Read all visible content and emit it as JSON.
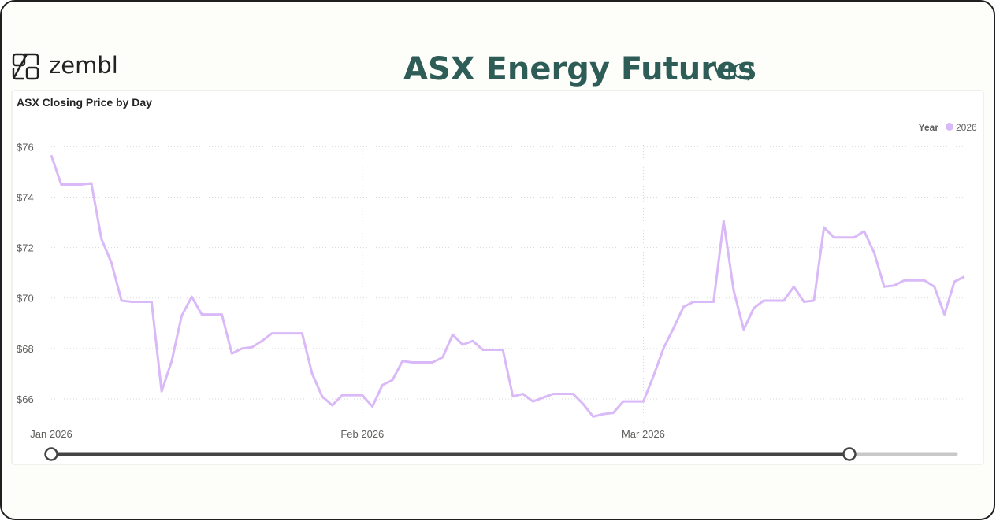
{
  "header": {
    "logo": "zembl",
    "title": "ASX Energy Futures",
    "region": "(VIC)"
  },
  "chart_data": {
    "type": "line",
    "title": "ASX Closing Price by Day",
    "legend_title": "Year",
    "categories": [
      "Jan 2026",
      null,
      null,
      null,
      null,
      null,
      null,
      null,
      null,
      null,
      null,
      null,
      null,
      null,
      null,
      null,
      null,
      null,
      null,
      null,
      null,
      null,
      null,
      null,
      null,
      null,
      null,
      null,
      null,
      null,
      null,
      "Feb 2026",
      null,
      null,
      null,
      null,
      null,
      null,
      null,
      null,
      null,
      null,
      null,
      null,
      null,
      null,
      null,
      null,
      null,
      null,
      null,
      null,
      null,
      null,
      null,
      null,
      null,
      null,
      null,
      "Mar 2026",
      null,
      null,
      null,
      null,
      null,
      null,
      null,
      null,
      null,
      null,
      null,
      null,
      null,
      null,
      null,
      null,
      null,
      null,
      null,
      null,
      null,
      null,
      null,
      null,
      null,
      null,
      null,
      null,
      null,
      null,
      null,
      null
    ],
    "series": [
      {
        "name": "2026",
        "color": "#d9b9f7",
        "values": [
          75.66,
          74.5,
          74.5,
          74.5,
          74.55,
          72.35,
          71.4,
          69.9,
          69.85,
          69.85,
          69.85,
          66.3,
          67.5,
          69.3,
          70.05,
          69.35,
          69.35,
          69.35,
          67.8,
          68,
          68.05,
          68.3,
          68.6,
          68.6,
          68.6,
          68.6,
          67,
          66.1,
          65.75,
          66.15,
          66.15,
          66.15,
          65.7,
          66.55,
          66.75,
          67.5,
          67.45,
          67.45,
          67.45,
          67.65,
          68.55,
          68.15,
          68.3,
          67.95,
          67.95,
          67.95,
          66.1,
          66.2,
          65.9,
          66.05,
          66.2,
          66.2,
          66.2,
          65.8,
          65.3,
          65.4,
          65.45,
          65.9,
          65.9,
          65.9,
          66.9,
          68,
          68.8,
          69.65,
          69.85,
          69.85,
          69.85,
          73.05,
          70.3,
          68.75,
          69.6,
          69.9,
          69.9,
          69.9,
          70.45,
          69.85,
          69.9,
          72.8,
          72.4,
          72.4,
          72.4,
          72.65,
          71.8,
          70.45,
          70.5,
          70.7,
          70.7,
          70.7,
          70.45,
          69.35,
          70.65,
          70.85
        ]
      }
    ],
    "ylim": [
      65,
      76.2
    ],
    "yticks": [
      {
        "value": 66,
        "label": "$66"
      },
      {
        "value": 68,
        "label": "$68"
      },
      {
        "value": 70,
        "label": "$70"
      },
      {
        "value": 72,
        "label": "$72"
      },
      {
        "value": 74,
        "label": "$74"
      },
      {
        "value": 76,
        "label": "$76"
      }
    ],
    "grid": true
  }
}
